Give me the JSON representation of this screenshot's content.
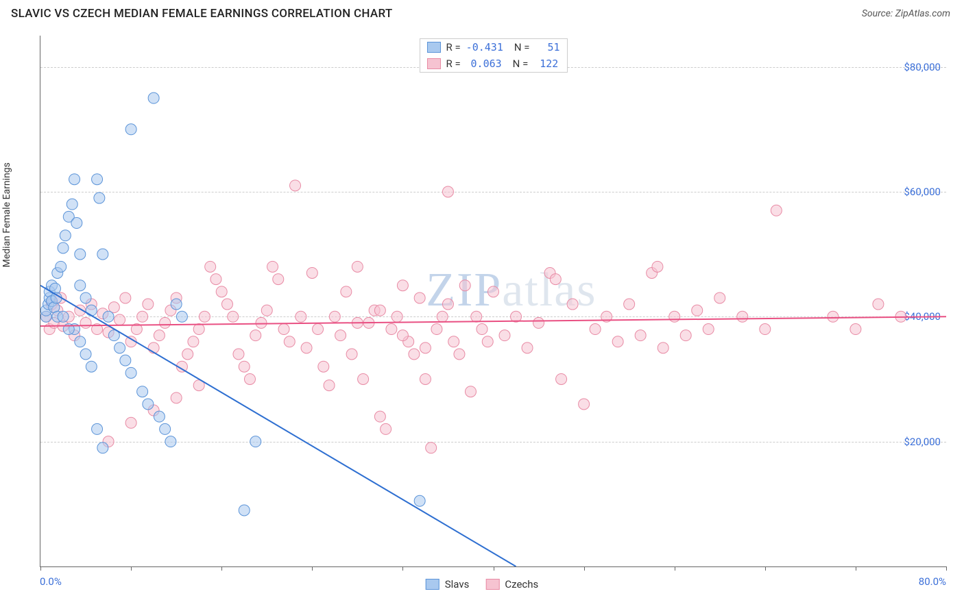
{
  "title": "SLAVIC VS CZECH MEDIAN FEMALE EARNINGS CORRELATION CHART",
  "source_label": "Source: ZipAtlas.com",
  "ylabel": "Median Female Earnings",
  "watermark": "ZIPatlas",
  "colors": {
    "slavs_fill": "#a9c9ef",
    "slavs_stroke": "#5a93d8",
    "slavs_line": "#2e6fd1",
    "czechs_fill": "#f6c3d1",
    "czechs_stroke": "#e88aa4",
    "czechs_line": "#e94f82",
    "axis_text": "#3b6fd8",
    "grid": "#cccccc",
    "axis": "#666666"
  },
  "chart": {
    "type": "scatter",
    "xlim": [
      0,
      80
    ],
    "ylim": [
      0,
      85000
    ],
    "yticks": [
      20000,
      40000,
      60000,
      80000
    ],
    "ytick_labels": [
      "$20,000",
      "$40,000",
      "$60,000",
      "$80,000"
    ],
    "xticks": [
      0,
      8,
      16,
      24,
      32,
      40,
      48,
      56,
      64,
      72,
      80
    ],
    "x_start_label": "0.0%",
    "x_end_label": "80.0%",
    "marker_radius": 8,
    "marker_opacity": 0.55,
    "line_width": 2
  },
  "legend_top": [
    {
      "swatch_fill": "#a9c9ef",
      "swatch_stroke": "#5a93d8",
      "r_label": "R =",
      "r": "-0.431",
      "n_label": "N =",
      "n": "51"
    },
    {
      "swatch_fill": "#f6c3d1",
      "swatch_stroke": "#e88aa4",
      "r_label": "R =",
      "r": "0.063",
      "n_label": "N =",
      "n": "122"
    }
  ],
  "legend_bottom": [
    {
      "swatch_fill": "#a9c9ef",
      "swatch_stroke": "#5a93d8",
      "label": "Slavs"
    },
    {
      "swatch_fill": "#f6c3d1",
      "swatch_stroke": "#e88aa4",
      "label": "Czechs"
    }
  ],
  "trend_lines": {
    "slavs": {
      "x1": 0,
      "y1": 45000,
      "x2": 42,
      "y2": 0
    },
    "czechs": {
      "x1": 0,
      "y1": 38500,
      "x2": 80,
      "y2": 40000
    }
  },
  "series": {
    "slavs": [
      [
        0.5,
        40000
      ],
      [
        0.5,
        41000
      ],
      [
        0.7,
        42000
      ],
      [
        0.8,
        43000
      ],
      [
        0.8,
        44000
      ],
      [
        1.0,
        45000
      ],
      [
        1.0,
        42500
      ],
      [
        1.2,
        41500
      ],
      [
        1.3,
        44500
      ],
      [
        1.4,
        43000
      ],
      [
        1.5,
        40000
      ],
      [
        1.5,
        47000
      ],
      [
        1.8,
        48000
      ],
      [
        2.0,
        51000
      ],
      [
        2.2,
        53000
      ],
      [
        2.5,
        56000
      ],
      [
        2.8,
        58000
      ],
      [
        3.0,
        62000
      ],
      [
        3.2,
        55000
      ],
      [
        3.5,
        50000
      ],
      [
        3.5,
        45000
      ],
      [
        4.0,
        43000
      ],
      [
        4.5,
        41000
      ],
      [
        5.0,
        62000
      ],
      [
        5.2,
        59000
      ],
      [
        5.5,
        50000
      ],
      [
        6.0,
        40000
      ],
      [
        6.5,
        37000
      ],
      [
        7.0,
        35000
      ],
      [
        7.5,
        33000
      ],
      [
        8.0,
        31000
      ],
      [
        8.0,
        70000
      ],
      [
        9.0,
        28000
      ],
      [
        9.5,
        26000
      ],
      [
        10.0,
        75000
      ],
      [
        10.5,
        24000
      ],
      [
        11.0,
        22000
      ],
      [
        11.5,
        20000
      ],
      [
        12.0,
        42000
      ],
      [
        12.5,
        40000
      ],
      [
        3.0,
        38000
      ],
      [
        3.5,
        36000
      ],
      [
        4.0,
        34000
      ],
      [
        4.5,
        32000
      ],
      [
        5.0,
        22000
      ],
      [
        5.5,
        19000
      ],
      [
        18.0,
        9000
      ],
      [
        19.0,
        20000
      ],
      [
        2.0,
        40000
      ],
      [
        2.5,
        38000
      ],
      [
        33.5,
        10500
      ]
    ],
    "czechs": [
      [
        0.5,
        40000
      ],
      [
        0.8,
        38000
      ],
      [
        1.0,
        42000
      ],
      [
        1.2,
        39000
      ],
      [
        1.5,
        41000
      ],
      [
        1.8,
        43000
      ],
      [
        2.0,
        38500
      ],
      [
        2.5,
        40000
      ],
      [
        3.0,
        37000
      ],
      [
        3.5,
        41000
      ],
      [
        4.0,
        39000
      ],
      [
        4.5,
        42000
      ],
      [
        5.0,
        38000
      ],
      [
        5.5,
        40500
      ],
      [
        6.0,
        37500
      ],
      [
        6.5,
        41500
      ],
      [
        7.0,
        39500
      ],
      [
        7.5,
        43000
      ],
      [
        8.0,
        36000
      ],
      [
        8.5,
        38000
      ],
      [
        9.0,
        40000
      ],
      [
        9.5,
        42000
      ],
      [
        10.0,
        35000
      ],
      [
        10.5,
        37000
      ],
      [
        11.0,
        39000
      ],
      [
        11.5,
        41000
      ],
      [
        12.0,
        43000
      ],
      [
        12.5,
        32000
      ],
      [
        13.0,
        34000
      ],
      [
        13.5,
        36000
      ],
      [
        14.0,
        38000
      ],
      [
        14.5,
        40000
      ],
      [
        15.0,
        48000
      ],
      [
        15.5,
        46000
      ],
      [
        16.0,
        44000
      ],
      [
        16.5,
        42000
      ],
      [
        17.0,
        40000
      ],
      [
        17.5,
        34000
      ],
      [
        18.0,
        32000
      ],
      [
        18.5,
        30000
      ],
      [
        19.0,
        37000
      ],
      [
        19.5,
        39000
      ],
      [
        20.0,
        41000
      ],
      [
        20.5,
        48000
      ],
      [
        21.0,
        46000
      ],
      [
        21.5,
        38000
      ],
      [
        22.0,
        36000
      ],
      [
        22.5,
        61000
      ],
      [
        23.0,
        40000
      ],
      [
        23.5,
        35000
      ],
      [
        24.0,
        47000
      ],
      [
        24.5,
        38000
      ],
      [
        25.0,
        32000
      ],
      [
        25.5,
        29000
      ],
      [
        26.0,
        40000
      ],
      [
        26.5,
        37000
      ],
      [
        27.0,
        44000
      ],
      [
        27.5,
        34000
      ],
      [
        28.0,
        48000
      ],
      [
        28.5,
        30000
      ],
      [
        29.0,
        39000
      ],
      [
        29.5,
        41000
      ],
      [
        30.0,
        24000
      ],
      [
        30.5,
        22000
      ],
      [
        31.0,
        38000
      ],
      [
        31.5,
        40000
      ],
      [
        32.0,
        45000
      ],
      [
        32.5,
        36000
      ],
      [
        33.0,
        34000
      ],
      [
        33.5,
        43000
      ],
      [
        34.0,
        30000
      ],
      [
        34.5,
        19000
      ],
      [
        35.0,
        38000
      ],
      [
        35.5,
        40000
      ],
      [
        36.0,
        60000
      ],
      [
        36.5,
        36000
      ],
      [
        37.0,
        34000
      ],
      [
        37.5,
        45000
      ],
      [
        38.0,
        28000
      ],
      [
        38.5,
        40000
      ],
      [
        39.0,
        38000
      ],
      [
        39.5,
        36000
      ],
      [
        40.0,
        44000
      ],
      [
        41.0,
        37000
      ],
      [
        42.0,
        40000
      ],
      [
        43.0,
        35000
      ],
      [
        44.0,
        39000
      ],
      [
        45.0,
        47000
      ],
      [
        45.5,
        46000
      ],
      [
        46.0,
        30000
      ],
      [
        47.0,
        42000
      ],
      [
        48.0,
        26000
      ],
      [
        49.0,
        38000
      ],
      [
        50.0,
        40000
      ],
      [
        51.0,
        36000
      ],
      [
        52.0,
        42000
      ],
      [
        53.0,
        37000
      ],
      [
        54.0,
        47000
      ],
      [
        54.5,
        48000
      ],
      [
        55.0,
        35000
      ],
      [
        56.0,
        40000
      ],
      [
        57.0,
        37000
      ],
      [
        58.0,
        41000
      ],
      [
        59.0,
        38000
      ],
      [
        60.0,
        43000
      ],
      [
        62.0,
        40000
      ],
      [
        64.0,
        38000
      ],
      [
        65.0,
        57000
      ],
      [
        70.0,
        40000
      ],
      [
        72.0,
        38000
      ],
      [
        74.0,
        42000
      ],
      [
        76.0,
        40000
      ],
      [
        6.0,
        20000
      ],
      [
        8.0,
        23000
      ],
      [
        10.0,
        25000
      ],
      [
        12.0,
        27000
      ],
      [
        14.0,
        29000
      ],
      [
        28.0,
        39000
      ],
      [
        30.0,
        41000
      ],
      [
        32.0,
        37000
      ],
      [
        34.0,
        35000
      ],
      [
        36.0,
        42000
      ]
    ]
  }
}
